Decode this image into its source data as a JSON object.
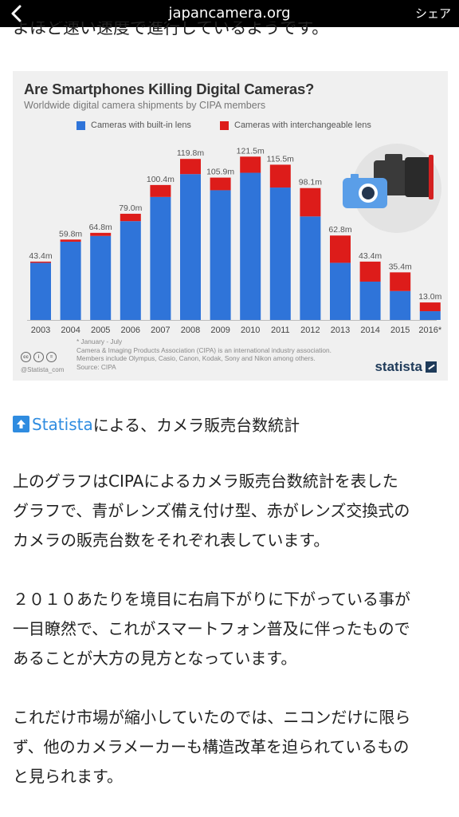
{
  "browser": {
    "url": "japancamera.org",
    "share_label": "シェア"
  },
  "cut_off_line": "よほど速い速度で進行しているようです。",
  "chart": {
    "title": "Are Smartphones Killing Digital Cameras?",
    "subtitle": "Worldwide digital camera shipments by CIPA members",
    "legend": [
      "Cameras with built-in lens",
      "Cameras with interchangeable lens"
    ],
    "footnotes": [
      "* January - July",
      "Camera & Imaging Products Association (CIPA) is an international industry association.",
      "Members include Olympus, Casio, Canon, Kodak, Sony and Nikon among others.",
      "Source: CIPA"
    ],
    "handle": "@Statista_com",
    "brand": "statista",
    "cc_icons": [
      "cc",
      "i",
      "="
    ]
  },
  "chart_data": {
    "type": "bar",
    "stacked": true,
    "title": "Are Smartphones Killing Digital Cameras?",
    "subtitle": "Worldwide digital camera shipments by CIPA members",
    "categories": [
      "2003",
      "2004",
      "2005",
      "2006",
      "2007",
      "2008",
      "2009",
      "2010",
      "2011",
      "2012",
      "2013",
      "2014",
      "2015",
      "2016*"
    ],
    "totals_labels": [
      "43.4m",
      "59.8m",
      "64.8m",
      "79.0m",
      "100.4m",
      "119.8m",
      "105.9m",
      "121.5m",
      "115.5m",
      "98.1m",
      "62.8m",
      "43.4m",
      "35.4m",
      "13.0m"
    ],
    "series": [
      {
        "name": "Cameras with built-in lens",
        "color": "#2f74d9",
        "values": [
          42.5,
          58.2,
          62.5,
          73.5,
          91.5,
          108.5,
          96.5,
          109.5,
          98.5,
          77.0,
          42.5,
          28.5,
          21.5,
          6.5
        ]
      },
      {
        "name": "Cameras with interchangeable lens",
        "color": "#dd1c1a",
        "values": [
          0.9,
          1.6,
          2.3,
          5.5,
          8.9,
          11.3,
          9.4,
          12.0,
          17.0,
          21.1,
          20.3,
          14.9,
          13.9,
          6.5
        ]
      }
    ],
    "ylim": [
      0,
      130
    ],
    "grid": false,
    "legend_position": "top"
  },
  "source": {
    "link_label": "Statista",
    "suffix": "による、カメラ販売台数統計"
  },
  "paragraphs": [
    [
      "上のグラフはCIPAによるカメラ販売台数統計を表した",
      "グラフで、青がレンズ備え付け型、赤がレンズ交換式の",
      "カメラの販売台数をそれぞれ表しています。"
    ],
    [
      "２０１０あたりを境目に右肩下がりに下がっている事が",
      "一目瞭然で、これがスマートフォン普及に伴ったもので",
      "あることが大方の見方となっています。"
    ],
    [
      "これだけ市場が縮小していたのでは、ニコンだけに限ら",
      "ず、他のカメラメーカーも構造改革を迫られているもの",
      "と見られます。"
    ]
  ]
}
